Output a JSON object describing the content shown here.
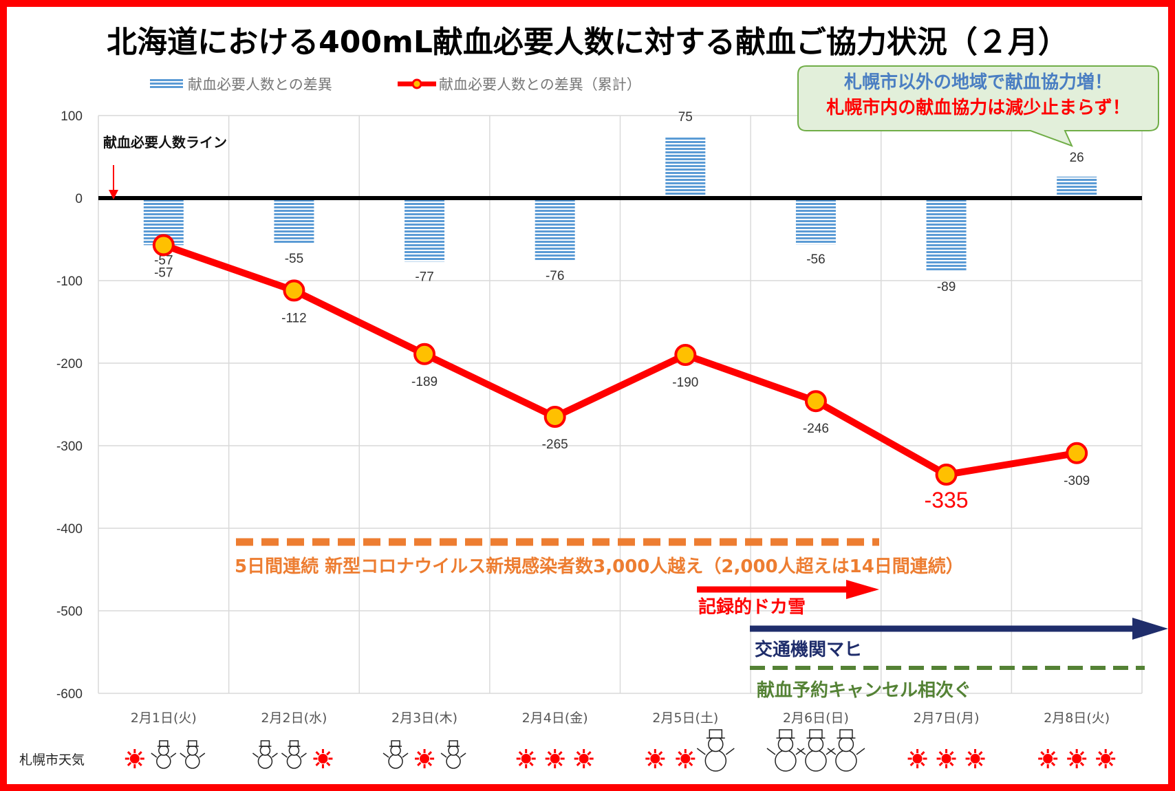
{
  "title": "北海道における400mL献血必要人数に対する献血ご協力状況（２月）",
  "legend": {
    "bar_label": "献血必要人数との差異",
    "line_label": "献血必要人数との差異（累計）"
  },
  "callout": {
    "line1": "札幌市以外の地域で献血協力増！",
    "line2": "札幌市内の献血協力は減少止まらず！"
  },
  "baseline_label": "献血必要人数ライン",
  "annotations": {
    "covid": "5日間連続  新型コロナウイルス新規感染者数3,000人越え（2,000人超えは14日間連続）",
    "snow": "記録的ドカ雪",
    "transport": "交通機関マヒ",
    "cancel": "献血予約キャンセル相次ぐ"
  },
  "weather": {
    "label": "札幌市天気",
    "days": [
      [
        "sun",
        "snow",
        "snow"
      ],
      [
        "snow",
        "snow",
        "sun"
      ],
      [
        "snow",
        "sun",
        "snow"
      ],
      [
        "sun",
        "sun",
        "sun"
      ],
      [
        "sun",
        "sun",
        "snow-large"
      ],
      [
        "snow-large",
        "snow-large",
        "snow-large"
      ],
      [
        "sun",
        "sun",
        "sun"
      ],
      [
        "sun",
        "sun",
        "sun"
      ]
    ]
  },
  "colors": {
    "bar": "#5b9bd5",
    "line": "#ff0000",
    "marker_fill": "#ffc000",
    "frame": "#ff0000",
    "callout_bg": "#e2efda",
    "callout_border": "#70ad47",
    "covid": "#ed7d31",
    "snow_arrow": "#ff0000",
    "transport_arrow": "#1f2d6b",
    "cancel_line": "#548235"
  },
  "chart_data": {
    "type": "bar",
    "categories": [
      "2月1日(火)",
      "2月2日(水)",
      "2月3日(木)",
      "2月4日(金)",
      "2月5日(土)",
      "2月6日(日)",
      "2月7日(月)",
      "2月8日(火)"
    ],
    "series": [
      {
        "name": "献血必要人数との差異",
        "type": "bar",
        "values": [
          -57,
          -55,
          -77,
          -76,
          75,
          -56,
          -89,
          26
        ]
      },
      {
        "name": "献血必要人数との差異（累計）",
        "type": "line",
        "values": [
          -57,
          -112,
          -189,
          -265,
          -190,
          -246,
          -335,
          -309
        ]
      }
    ],
    "title": "北海道における400mL献血必要人数に対する献血ご協力状況（２月）",
    "ylim": [
      -600,
      100
    ],
    "yticks": [
      100,
      0,
      -100,
      -200,
      -300,
      -400,
      -500,
      -600
    ],
    "grid": true,
    "legend_position": "top"
  }
}
